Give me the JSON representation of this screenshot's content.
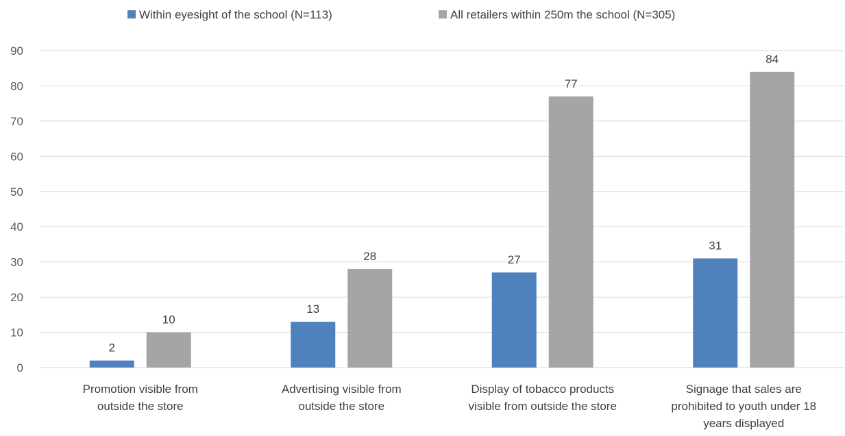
{
  "chart_data": {
    "type": "bar",
    "title": "",
    "xlabel": "",
    "ylabel": "",
    "ylim": [
      0,
      90
    ],
    "yticks": [
      0,
      10,
      20,
      30,
      40,
      50,
      60,
      70,
      80,
      90
    ],
    "grid": true,
    "legend_position": "top",
    "categories": [
      [
        "Promotion visible from",
        "outside the store"
      ],
      [
        "Advertising visible from",
        "outside the store"
      ],
      [
        "Display of tobacco products",
        "visible from outside the store"
      ],
      [
        "Signage that sales are",
        "prohibited to youth under 18",
        "years displayed"
      ]
    ],
    "series": [
      {
        "name": "Within eyesight of the school (N=113)",
        "color": "#4f81bd",
        "values": [
          2,
          13,
          27,
          31
        ]
      },
      {
        "name": "All retailers within 250m the school (N=305)",
        "color": "#a5a5a5",
        "values": [
          10,
          28,
          77,
          84
        ]
      }
    ]
  }
}
